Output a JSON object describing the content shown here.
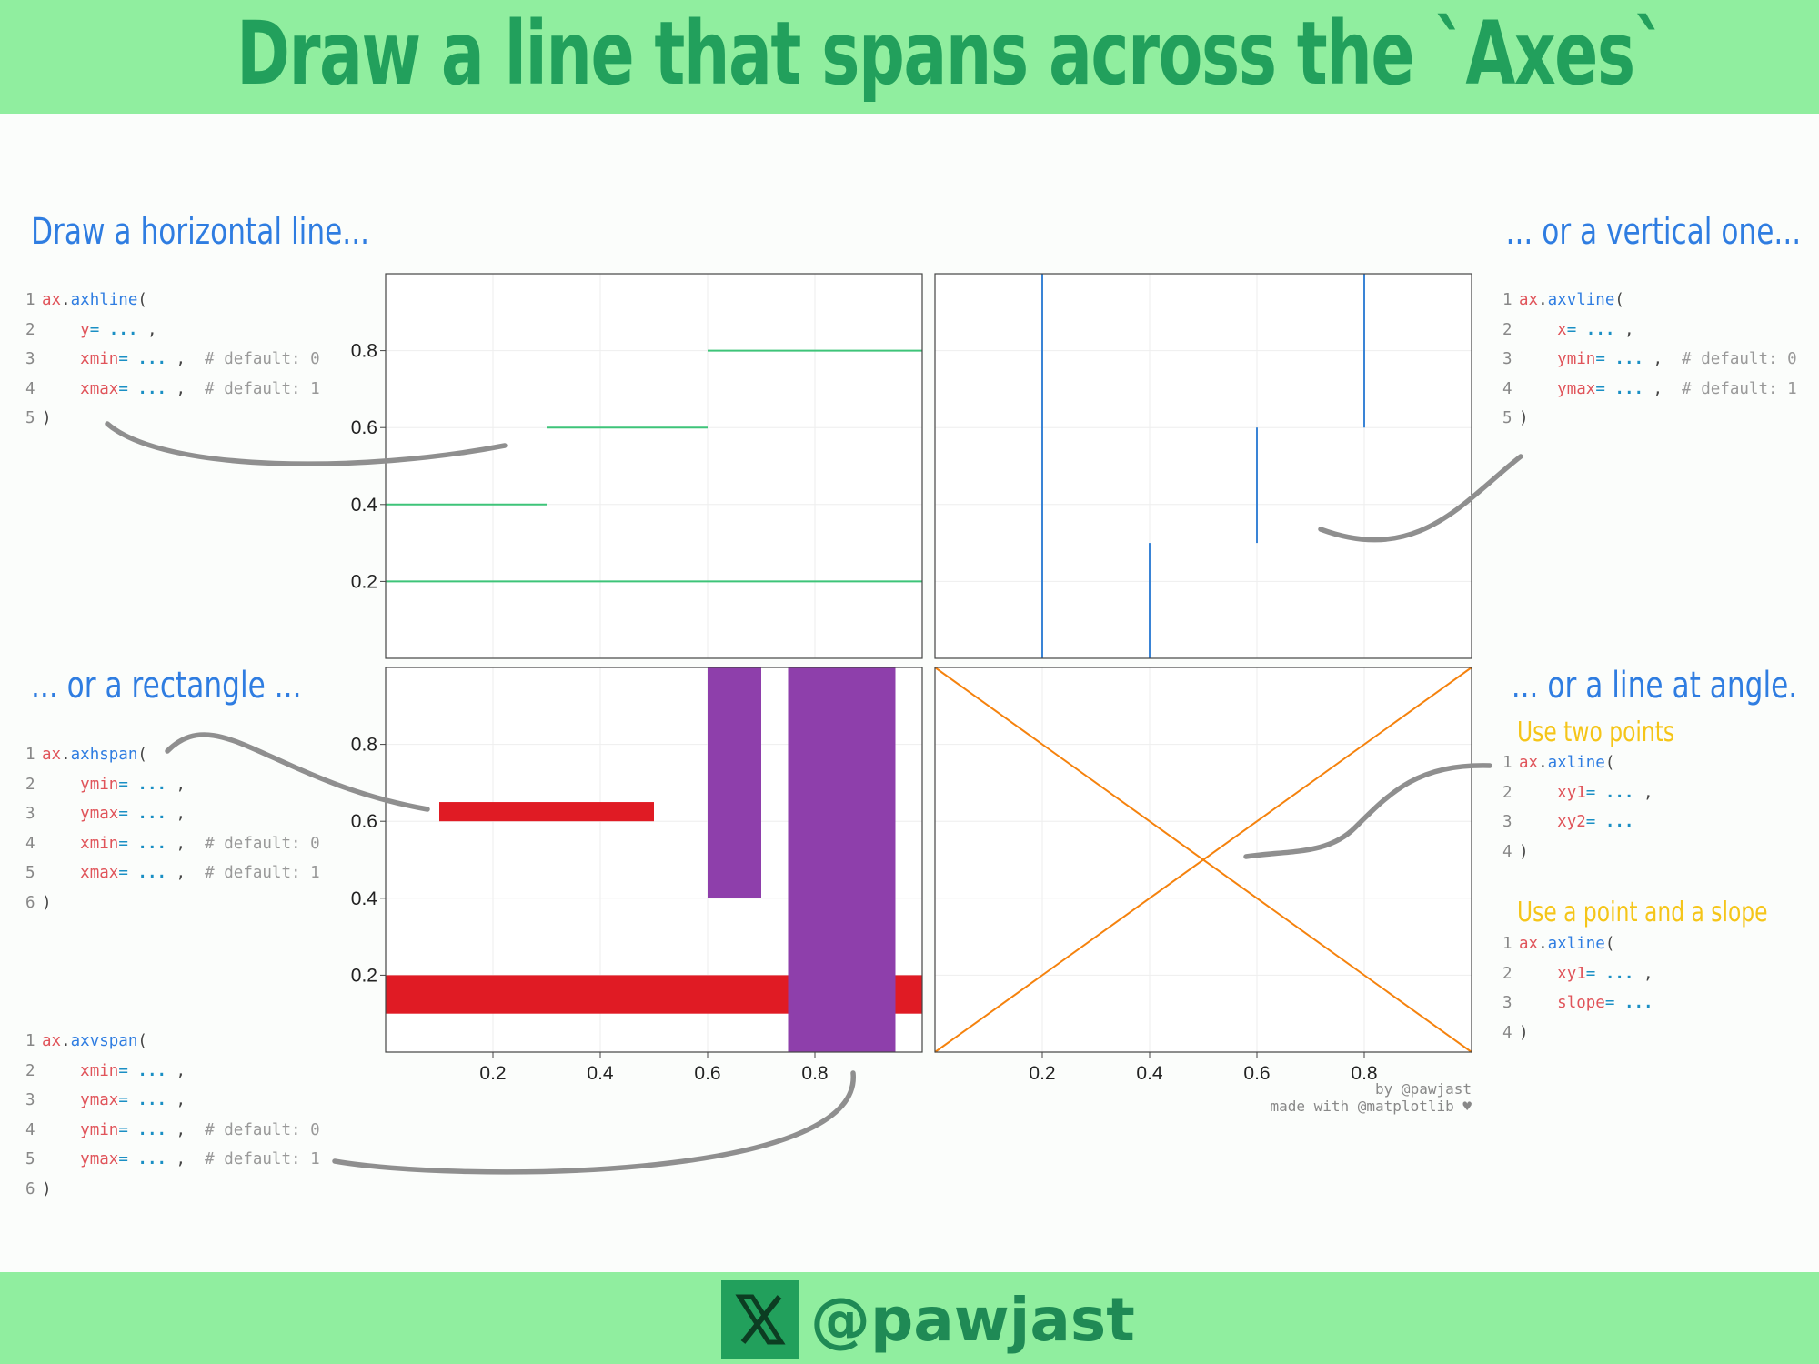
{
  "header": {
    "title": "Draw a line that spans across the `Axes`"
  },
  "footer": {
    "handle": "@pawjast"
  },
  "credits": {
    "line1": "by @pawjast",
    "line2": "made with @matplotlib ♥"
  },
  "colors": {
    "band": "#90ee9f",
    "title": "#22a05c",
    "hline": "#3ec479",
    "vline": "#3a84d6",
    "hspan": "#e01b24",
    "vspan": "#8e3fab",
    "axline": "#f5820d",
    "section": "#2f7de1",
    "sub": "#f5c518",
    "arrow": "#8f8f8f"
  },
  "sections": {
    "horizontal": "Draw a horizontal line...",
    "vertical": "... or a vertical one...",
    "rectangle": "... or a rectangle ...",
    "angle": "... or a line at angle.",
    "two_points": "Use two points",
    "point_slope": "Use a point and a slope"
  },
  "code": {
    "axhline": [
      {
        "n": "1",
        "t": [
          [
            "obj",
            "ax"
          ],
          [
            "pun",
            "."
          ],
          [
            "fn",
            "axhline"
          ],
          [
            "pun",
            "("
          ]
        ]
      },
      {
        "n": "2",
        "t": [
          [
            "pun",
            "    "
          ],
          [
            "kw",
            "y"
          ],
          [
            "op",
            "="
          ],
          [
            "pun",
            " "
          ],
          [
            "val",
            "..."
          ],
          [
            "pun",
            " ,"
          ]
        ]
      },
      {
        "n": "3",
        "t": [
          [
            "pun",
            "    "
          ],
          [
            "kw",
            "xmin"
          ],
          [
            "op",
            "="
          ],
          [
            "pun",
            " "
          ],
          [
            "val",
            "..."
          ],
          [
            "pun",
            " ,  "
          ],
          [
            "cm",
            "# default: 0"
          ]
        ]
      },
      {
        "n": "4",
        "t": [
          [
            "pun",
            "    "
          ],
          [
            "kw",
            "xmax"
          ],
          [
            "op",
            "="
          ],
          [
            "pun",
            " "
          ],
          [
            "val",
            "..."
          ],
          [
            "pun",
            " ,  "
          ],
          [
            "cm",
            "# default: 1"
          ]
        ]
      },
      {
        "n": "5",
        "t": [
          [
            "pun",
            ")"
          ]
        ]
      }
    ],
    "axvline": [
      {
        "n": "1",
        "t": [
          [
            "obj",
            "ax"
          ],
          [
            "pun",
            "."
          ],
          [
            "fn",
            "axvline"
          ],
          [
            "pun",
            "("
          ]
        ]
      },
      {
        "n": "2",
        "t": [
          [
            "pun",
            "    "
          ],
          [
            "kw",
            "x"
          ],
          [
            "op",
            "="
          ],
          [
            "pun",
            " "
          ],
          [
            "val",
            "..."
          ],
          [
            "pun",
            " ,"
          ]
        ]
      },
      {
        "n": "3",
        "t": [
          [
            "pun",
            "    "
          ],
          [
            "kw",
            "ymin"
          ],
          [
            "op",
            "="
          ],
          [
            "pun",
            " "
          ],
          [
            "val",
            "..."
          ],
          [
            "pun",
            " ,  "
          ],
          [
            "cm",
            "# default: 0"
          ]
        ]
      },
      {
        "n": "4",
        "t": [
          [
            "pun",
            "    "
          ],
          [
            "kw",
            "ymax"
          ],
          [
            "op",
            "="
          ],
          [
            "pun",
            " "
          ],
          [
            "val",
            "..."
          ],
          [
            "pun",
            " ,  "
          ],
          [
            "cm",
            "# default: 1"
          ]
        ]
      },
      {
        "n": "5",
        "t": [
          [
            "pun",
            ")"
          ]
        ]
      }
    ],
    "axhspan": [
      {
        "n": "1",
        "t": [
          [
            "obj",
            "ax"
          ],
          [
            "pun",
            "."
          ],
          [
            "fn",
            "axhspan"
          ],
          [
            "pun",
            "("
          ]
        ]
      },
      {
        "n": "2",
        "t": [
          [
            "pun",
            "    "
          ],
          [
            "kw",
            "ymin"
          ],
          [
            "op",
            "="
          ],
          [
            "pun",
            " "
          ],
          [
            "val",
            "..."
          ],
          [
            "pun",
            " ,"
          ]
        ]
      },
      {
        "n": "3",
        "t": [
          [
            "pun",
            "    "
          ],
          [
            "kw",
            "ymax"
          ],
          [
            "op",
            "="
          ],
          [
            "pun",
            " "
          ],
          [
            "val",
            "..."
          ],
          [
            "pun",
            " ,"
          ]
        ]
      },
      {
        "n": "4",
        "t": [
          [
            "pun",
            "    "
          ],
          [
            "kw",
            "xmin"
          ],
          [
            "op",
            "="
          ],
          [
            "pun",
            " "
          ],
          [
            "val",
            "..."
          ],
          [
            "pun",
            " ,  "
          ],
          [
            "cm",
            "# default: 0"
          ]
        ]
      },
      {
        "n": "5",
        "t": [
          [
            "pun",
            "    "
          ],
          [
            "kw",
            "xmax"
          ],
          [
            "op",
            "="
          ],
          [
            "pun",
            " "
          ],
          [
            "val",
            "..."
          ],
          [
            "pun",
            " ,  "
          ],
          [
            "cm",
            "# default: 1"
          ]
        ]
      },
      {
        "n": "6",
        "t": [
          [
            "pun",
            ")"
          ]
        ]
      }
    ],
    "axvspan": [
      {
        "n": "1",
        "t": [
          [
            "obj",
            "ax"
          ],
          [
            "pun",
            "."
          ],
          [
            "fn",
            "axvspan"
          ],
          [
            "pun",
            "("
          ]
        ]
      },
      {
        "n": "2",
        "t": [
          [
            "pun",
            "    "
          ],
          [
            "kw",
            "xmin"
          ],
          [
            "op",
            "="
          ],
          [
            "pun",
            " "
          ],
          [
            "val",
            "..."
          ],
          [
            "pun",
            " ,"
          ]
        ]
      },
      {
        "n": "3",
        "t": [
          [
            "pun",
            "    "
          ],
          [
            "kw",
            "ymax"
          ],
          [
            "op",
            "="
          ],
          [
            "pun",
            " "
          ],
          [
            "val",
            "..."
          ],
          [
            "pun",
            " ,"
          ]
        ]
      },
      {
        "n": "4",
        "t": [
          [
            "pun",
            "    "
          ],
          [
            "kw",
            "ymin"
          ],
          [
            "op",
            "="
          ],
          [
            "pun",
            " "
          ],
          [
            "val",
            "..."
          ],
          [
            "pun",
            " ,  "
          ],
          [
            "cm",
            "# default: 0"
          ]
        ]
      },
      {
        "n": "5",
        "t": [
          [
            "pun",
            "    "
          ],
          [
            "kw",
            "ymax"
          ],
          [
            "op",
            "="
          ],
          [
            "pun",
            " "
          ],
          [
            "val",
            "..."
          ],
          [
            "pun",
            " ,  "
          ],
          [
            "cm",
            "# default: 1"
          ]
        ]
      },
      {
        "n": "6",
        "t": [
          [
            "pun",
            ")"
          ]
        ]
      }
    ],
    "axline_two": [
      {
        "n": "1",
        "t": [
          [
            "obj",
            "ax"
          ],
          [
            "pun",
            "."
          ],
          [
            "fn",
            "axline"
          ],
          [
            "pun",
            "("
          ]
        ]
      },
      {
        "n": "2",
        "t": [
          [
            "pun",
            "    "
          ],
          [
            "kw",
            "xy1"
          ],
          [
            "op",
            "="
          ],
          [
            "pun",
            " "
          ],
          [
            "val",
            "..."
          ],
          [
            "pun",
            " ,"
          ]
        ]
      },
      {
        "n": "3",
        "t": [
          [
            "pun",
            "    "
          ],
          [
            "kw",
            "xy2"
          ],
          [
            "op",
            "="
          ],
          [
            "pun",
            " "
          ],
          [
            "val",
            "..."
          ]
        ]
      },
      {
        "n": "4",
        "t": [
          [
            "pun",
            ")"
          ]
        ]
      }
    ],
    "axline_slope": [
      {
        "n": "1",
        "t": [
          [
            "obj",
            "ax"
          ],
          [
            "pun",
            "."
          ],
          [
            "fn",
            "axline"
          ],
          [
            "pun",
            "("
          ]
        ]
      },
      {
        "n": "2",
        "t": [
          [
            "pun",
            "    "
          ],
          [
            "kw",
            "xy1"
          ],
          [
            "op",
            "="
          ],
          [
            "pun",
            " "
          ],
          [
            "val",
            "..."
          ],
          [
            "pun",
            " ,"
          ]
        ]
      },
      {
        "n": "3",
        "t": [
          [
            "pun",
            "    "
          ],
          [
            "kw",
            "slope"
          ],
          [
            "op",
            "="
          ],
          [
            "pun",
            " "
          ],
          [
            "val",
            "..."
          ]
        ]
      },
      {
        "n": "4",
        "t": [
          [
            "pun",
            ")"
          ]
        ]
      }
    ]
  },
  "chart_data": [
    {
      "id": "hline-chart",
      "type": "line",
      "subtype": "axhline",
      "xlim": [
        0,
        1
      ],
      "ylim": [
        0,
        1
      ],
      "grid": true,
      "xticks": [],
      "yticks": [
        0.2,
        0.4,
        0.6,
        0.8
      ],
      "ytick_labels": [
        "0.2",
        "0.4",
        "0.6",
        "0.8"
      ],
      "lines": [
        {
          "y": 0.2,
          "xmin": 0,
          "xmax": 1
        },
        {
          "y": 0.4,
          "xmin": 0,
          "xmax": 0.3
        },
        {
          "y": 0.6,
          "xmin": 0.3,
          "xmax": 0.6
        },
        {
          "y": 0.8,
          "xmin": 0.6,
          "xmax": 1
        }
      ]
    },
    {
      "id": "vline-chart",
      "type": "line",
      "subtype": "axvline",
      "xlim": [
        0,
        1
      ],
      "ylim": [
        0,
        1
      ],
      "grid": true,
      "xticks": [],
      "yticks": [],
      "lines": [
        {
          "x": 0.2,
          "ymin": 0,
          "ymax": 1
        },
        {
          "x": 0.4,
          "ymin": 0,
          "ymax": 0.3
        },
        {
          "x": 0.6,
          "ymin": 0.3,
          "ymax": 0.6
        },
        {
          "x": 0.8,
          "ymin": 0.6,
          "ymax": 1
        }
      ]
    },
    {
      "id": "span-chart",
      "type": "area",
      "subtype": "axhspan/axvspan",
      "xlim": [
        0,
        1
      ],
      "ylim": [
        0,
        1
      ],
      "grid": true,
      "xticks": [
        0.2,
        0.4,
        0.6,
        0.8
      ],
      "xtick_labels": [
        "0.2",
        "0.4",
        "0.6",
        "0.8"
      ],
      "yticks": [
        0.2,
        0.4,
        0.6,
        0.8
      ],
      "ytick_labels": [
        "0.2",
        "0.4",
        "0.6",
        "0.8"
      ],
      "hspans": [
        {
          "ymin": 0.1,
          "ymax": 0.2,
          "xmin": 0,
          "xmax": 1
        },
        {
          "ymin": 0.6,
          "ymax": 0.65,
          "xmin": 0.1,
          "xmax": 0.5
        }
      ],
      "vspans": [
        {
          "xmin": 0.6,
          "xmax": 0.7,
          "ymin": 0.4,
          "ymax": 1
        },
        {
          "xmin": 0.75,
          "xmax": 0.95,
          "ymin": 0,
          "ymax": 1
        }
      ]
    },
    {
      "id": "axline-chart",
      "type": "line",
      "subtype": "axline",
      "xlim": [
        0,
        1
      ],
      "ylim": [
        0,
        1
      ],
      "grid": true,
      "xticks": [
        0.2,
        0.4,
        0.6,
        0.8
      ],
      "xtick_labels": [
        "0.2",
        "0.4",
        "0.6",
        "0.8"
      ],
      "yticks": [],
      "lines": [
        {
          "xy1": [
            0,
            0
          ],
          "xy2": [
            1,
            1
          ]
        },
        {
          "xy1": [
            0,
            1
          ],
          "slope": -1
        }
      ]
    }
  ]
}
